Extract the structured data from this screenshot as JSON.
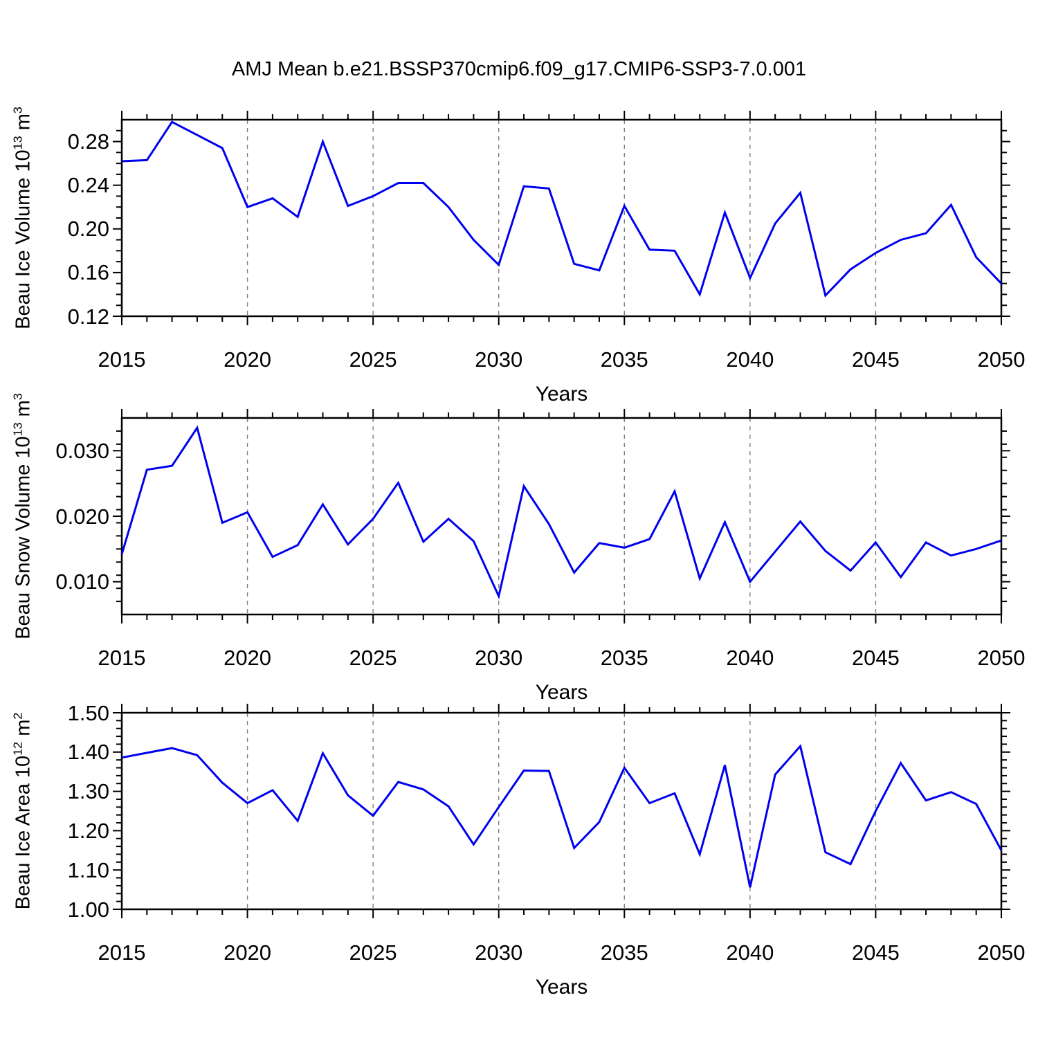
{
  "title": "AMJ Mean b.e21.BSSP370cmip6.f09_g17.CMIP6-SSP3-7.0.001",
  "colors": {
    "line": "#0000ee",
    "grid": "#7f7f7f",
    "frame": "#000000",
    "text": "#000000",
    "background": "#ffffff"
  },
  "years": [
    2015,
    2016,
    2017,
    2018,
    2019,
    2020,
    2021,
    2022,
    2023,
    2024,
    2025,
    2026,
    2027,
    2028,
    2029,
    2030,
    2031,
    2032,
    2033,
    2034,
    2035,
    2036,
    2037,
    2038,
    2039,
    2040,
    2041,
    2042,
    2043,
    2044,
    2045,
    2046,
    2047,
    2048,
    2049,
    2050
  ],
  "x_axis": {
    "xlim": [
      2015,
      2050
    ],
    "xlabel": "Years",
    "major_tick_years": [
      2015,
      2020,
      2025,
      2030,
      2035,
      2040,
      2045,
      2050
    ],
    "tick_labels": [
      "2015",
      "2020",
      "2025",
      "2030",
      "2035",
      "2040",
      "2045",
      "2050"
    ],
    "minor_step": 1,
    "gridline_years": [
      2020,
      2025,
      2030,
      2035,
      2040,
      2045
    ],
    "grid_style": "dashed"
  },
  "chart_data": [
    {
      "type": "line",
      "ylabel": "Beau Ice Volume 10^13 m^3",
      "ylabel_parts": {
        "base": "Beau Ice Volume 10",
        "exp": "13",
        "unit": " m",
        "unit_exp": "3"
      },
      "ylim": [
        0.12,
        0.3
      ],
      "y_major_ticks": [
        0.12,
        0.16,
        0.2,
        0.24,
        0.28
      ],
      "y_tick_labels": [
        "0.12",
        "0.16",
        "0.20",
        "0.24",
        "0.28"
      ],
      "y_minor_step": 0.01,
      "values": [
        0.262,
        0.263,
        0.298,
        0.286,
        0.274,
        0.22,
        0.228,
        0.211,
        0.28,
        0.221,
        0.23,
        0.242,
        0.242,
        0.22,
        0.19,
        0.167,
        0.239,
        0.237,
        0.168,
        0.162,
        0.221,
        0.181,
        0.18,
        0.14,
        0.215,
        0.155,
        0.205,
        0.233,
        0.139,
        0.163,
        0.178,
        0.19,
        0.196,
        0.222,
        0.174,
        0.15
      ]
    },
    {
      "type": "line",
      "ylabel": "Beau Snow Volume 10^13 m^3",
      "ylabel_parts": {
        "base": "Beau Snow Volume 10",
        "exp": "13",
        "unit": " m",
        "unit_exp": "3"
      },
      "ylim": [
        0.005,
        0.035
      ],
      "y_major_ticks": [
        0.01,
        0.02,
        0.03
      ],
      "y_tick_labels": [
        "0.010",
        "0.020",
        "0.030"
      ],
      "y_minor_step": 0.002,
      "values": [
        0.0142,
        0.0271,
        0.0277,
        0.0335,
        0.019,
        0.0206,
        0.0138,
        0.0156,
        0.0218,
        0.0157,
        0.0196,
        0.0251,
        0.0161,
        0.0196,
        0.0162,
        0.0078,
        0.0246,
        0.0188,
        0.0114,
        0.0159,
        0.0152,
        0.0165,
        0.0238,
        0.0105,
        0.0191,
        0.01,
        0.0146,
        0.0192,
        0.0147,
        0.0117,
        0.016,
        0.0107,
        0.016,
        0.014,
        0.015,
        0.0163
      ]
    },
    {
      "type": "line",
      "ylabel": "Beau Ice Area 10^12 m^2",
      "ylabel_parts": {
        "base": "Beau Ice Area 10",
        "exp": "12",
        "unit": " m",
        "unit_exp": "2"
      },
      "ylim": [
        1.0,
        1.5
      ],
      "y_major_ticks": [
        1.0,
        1.1,
        1.2,
        1.3,
        1.4,
        1.5
      ],
      "y_tick_labels": [
        "1.00",
        "1.10",
        "1.20",
        "1.30",
        "1.40",
        "1.50"
      ],
      "y_minor_step": 0.02,
      "values": [
        1.386,
        1.398,
        1.41,
        1.392,
        1.322,
        1.27,
        1.303,
        1.225,
        1.397,
        1.29,
        1.238,
        1.324,
        1.305,
        1.262,
        1.165,
        1.26,
        1.353,
        1.352,
        1.156,
        1.222,
        1.36,
        1.27,
        1.295,
        1.14,
        1.367,
        1.056,
        1.343,
        1.415,
        1.145,
        1.115,
        1.25,
        1.372,
        1.277,
        1.298,
        1.268,
        1.15
      ]
    }
  ]
}
